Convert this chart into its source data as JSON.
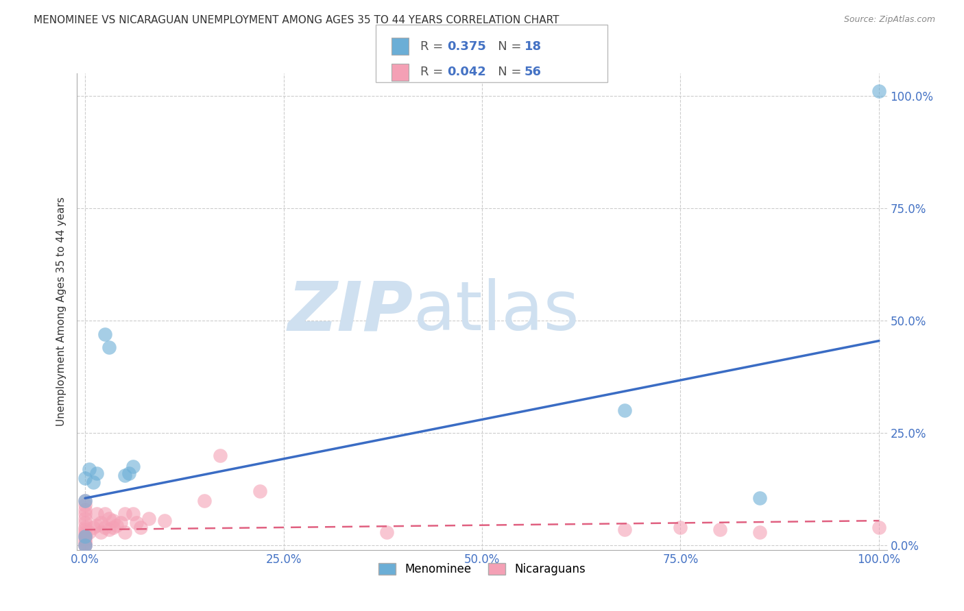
{
  "title": "MENOMINEE VS NICARAGUAN UNEMPLOYMENT AMONG AGES 35 TO 44 YEARS CORRELATION CHART",
  "source": "Source: ZipAtlas.com",
  "ylabel": "Unemployment Among Ages 35 to 44 years",
  "xlim": [
    -1,
    101
  ],
  "ylim": [
    -1,
    105
  ],
  "xticks": [
    0,
    25,
    50,
    75,
    100
  ],
  "yticks": [
    0,
    25,
    50,
    75,
    100
  ],
  "xticklabels": [
    "0.0%",
    "25.0%",
    "50.0%",
    "75.0%",
    "100.0%"
  ],
  "yticklabels": [
    "0.0%",
    "25.0%",
    "50.0%",
    "75.0%",
    "100.0%"
  ],
  "menominee_color": "#6baed6",
  "nicaraguan_color": "#f4a0b5",
  "menominee_edge_color": "#4a90d9",
  "nicaraguan_edge_color": "#e8799a",
  "menominee_R": 0.375,
  "menominee_N": 18,
  "nicaraguan_R": 0.042,
  "nicaraguan_N": 56,
  "menominee_points_x": [
    0.0,
    0.0,
    0.0,
    0.0,
    0.5,
    1.0,
    1.5,
    2.5,
    3.0,
    5.0,
    5.5,
    6.0,
    68.0,
    85.0,
    100.0
  ],
  "menominee_points_y": [
    0.0,
    2.0,
    10.0,
    15.0,
    17.0,
    14.0,
    16.0,
    47.0,
    44.0,
    15.5,
    16.0,
    17.5,
    30.0,
    10.5,
    101.0
  ],
  "nicaraguan_points_x": [
    0.0,
    0.0,
    0.0,
    0.0,
    0.0,
    0.0,
    0.0,
    0.0,
    0.0,
    0.0,
    0.0,
    0.0,
    0.0,
    0.0,
    0.0,
    0.0,
    0.5,
    1.0,
    1.5,
    1.5,
    2.0,
    2.0,
    2.5,
    2.5,
    3.0,
    3.0,
    3.5,
    3.5,
    4.0,
    4.5,
    5.0,
    5.0,
    6.0,
    6.5,
    7.0,
    8.0,
    10.0,
    15.0,
    17.0,
    22.0,
    38.0,
    68.0,
    75.0,
    80.0,
    85.0,
    100.0
  ],
  "nicaraguan_points_y": [
    0.0,
    0.0,
    0.5,
    1.0,
    1.5,
    2.0,
    2.5,
    3.0,
    3.5,
    4.0,
    5.0,
    6.0,
    7.0,
    8.0,
    9.0,
    10.0,
    3.0,
    4.0,
    4.5,
    7.0,
    3.0,
    5.0,
    4.0,
    7.0,
    3.5,
    6.0,
    4.0,
    5.5,
    4.5,
    5.0,
    3.0,
    7.0,
    7.0,
    5.0,
    4.0,
    6.0,
    5.5,
    10.0,
    20.0,
    12.0,
    3.0,
    3.5,
    4.0,
    3.5,
    3.0,
    4.0
  ],
  "menominee_line_x": [
    0,
    100
  ],
  "menominee_line_y": [
    10.5,
    45.5
  ],
  "nicaraguan_line_x": [
    0,
    100
  ],
  "nicaraguan_line_y": [
    3.5,
    5.5
  ],
  "watermark_zip": "ZIP",
  "watermark_atlas": "atlas",
  "watermark_color": "#cfe0f0",
  "background_color": "#ffffff",
  "grid_color": "#cccccc",
  "title_fontsize": 11,
  "tick_color": "#4472c4",
  "right_ytick_color": "#4472c4"
}
